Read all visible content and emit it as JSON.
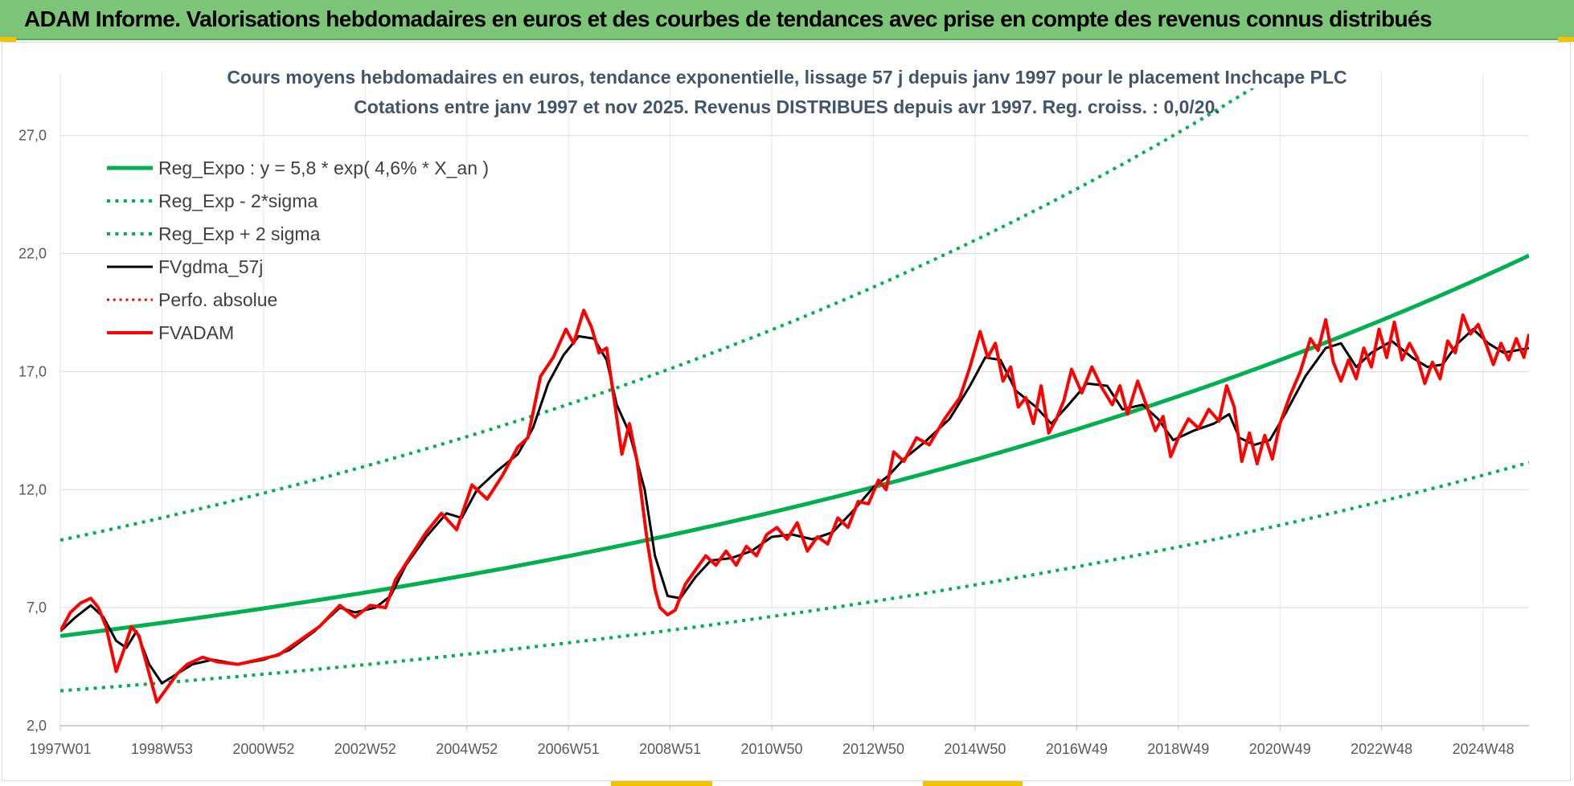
{
  "banner": {
    "title": "ADAM Informe. Valorisations hebdomadaires en euros et des courbes de tendances avec prise en compte des revenus connus distribués"
  },
  "chart_data": {
    "type": "line",
    "title": "Cours moyens hebdomadaires en euros, tendance exponentielle, lissage 57 j depuis janv 1997 pour le placement Inchcape PLC",
    "subtitle": "Cotations entre janv 1997 et nov 2025. Revenus DISTRIBUES depuis avr 1997. Reg. croiss. : 0,0/20.",
    "xlabel": "",
    "ylabel": "",
    "x_range": [
      1997.0,
      2025.9
    ],
    "ylim": [
      2.0,
      29.0
    ],
    "y_ticks": [
      2.0,
      7.0,
      12.0,
      17.0,
      22.0,
      27.0
    ],
    "y_tick_labels": [
      "2,0",
      "7,0",
      "12,0",
      "17,0",
      "22,0",
      "27,0"
    ],
    "x_ticks": [
      1997.0,
      1999.0,
      2001.0,
      2003.0,
      2005.0,
      2007.0,
      2009.0,
      2011.0,
      2013.0,
      2015.0,
      2017.0,
      2019.0,
      2021.0,
      2023.0,
      2025.0
    ],
    "x_tick_labels": [
      "1997W01",
      "1998W53",
      "2000W52",
      "2002W52",
      "2004W52",
      "2006W51",
      "2008W51",
      "2010W50",
      "2012W50",
      "2014W50",
      "2016W49",
      "2018W49",
      "2020W49",
      "2022W48",
      "2024W48"
    ],
    "grid": true,
    "legend_position": "top-left",
    "regression": {
      "a": 5.8,
      "rate_per_year": 0.046,
      "low_factor": 0.6,
      "high_factor": 1.7
    },
    "series": [
      {
        "name": "Reg_Expo : y = 5,8 * exp( 4,6% *  X_an )",
        "color": "#00b050",
        "style": "solid",
        "width": 5
      },
      {
        "name": "Reg_Exp - 2*sigma",
        "color": "#00b050",
        "style": "dotted",
        "width": 4
      },
      {
        "name": "Reg_Exp + 2 sigma",
        "color": "#00b050",
        "style": "dotted",
        "width": 4
      },
      {
        "name": "FVgdma_57j",
        "color": "#000000",
        "style": "solid",
        "width": 3,
        "points": [
          [
            1997.0,
            6.0
          ],
          [
            1997.3,
            6.6
          ],
          [
            1997.6,
            7.1
          ],
          [
            1997.85,
            6.6
          ],
          [
            1998.1,
            5.6
          ],
          [
            1998.3,
            5.3
          ],
          [
            1998.5,
            6.0
          ],
          [
            1998.75,
            4.6
          ],
          [
            1999.0,
            3.8
          ],
          [
            1999.3,
            4.2
          ],
          [
            1999.6,
            4.6
          ],
          [
            2000.0,
            4.8
          ],
          [
            2000.5,
            4.6
          ],
          [
            2001.0,
            4.8
          ],
          [
            2001.5,
            5.2
          ],
          [
            2002.0,
            6.0
          ],
          [
            2002.5,
            7.0
          ],
          [
            2002.8,
            6.8
          ],
          [
            2003.2,
            7.0
          ],
          [
            2003.5,
            7.5
          ],
          [
            2003.8,
            8.8
          ],
          [
            2004.2,
            10.0
          ],
          [
            2004.6,
            11.0
          ],
          [
            2004.9,
            10.8
          ],
          [
            2005.2,
            12.0
          ],
          [
            2005.6,
            12.8
          ],
          [
            2006.0,
            13.5
          ],
          [
            2006.3,
            14.6
          ],
          [
            2006.6,
            16.5
          ],
          [
            2006.9,
            17.7
          ],
          [
            2007.2,
            18.5
          ],
          [
            2007.5,
            18.4
          ],
          [
            2007.75,
            17.5
          ],
          [
            2007.95,
            15.6
          ],
          [
            2008.2,
            14.4
          ],
          [
            2008.5,
            12.0
          ],
          [
            2008.7,
            9.2
          ],
          [
            2008.95,
            7.5
          ],
          [
            2009.2,
            7.4
          ],
          [
            2009.5,
            8.3
          ],
          [
            2009.8,
            9.0
          ],
          [
            2010.2,
            9.1
          ],
          [
            2010.6,
            9.4
          ],
          [
            2011.0,
            10.0
          ],
          [
            2011.4,
            10.1
          ],
          [
            2011.8,
            9.9
          ],
          [
            2012.2,
            10.2
          ],
          [
            2012.6,
            11.1
          ],
          [
            2013.0,
            12.1
          ],
          [
            2013.3,
            12.6
          ],
          [
            2013.6,
            13.3
          ],
          [
            2014.0,
            14.0
          ],
          [
            2014.5,
            15.0
          ],
          [
            2014.9,
            16.4
          ],
          [
            2015.2,
            17.6
          ],
          [
            2015.5,
            17.5
          ],
          [
            2015.8,
            16.2
          ],
          [
            2016.2,
            15.5
          ],
          [
            2016.5,
            14.8
          ],
          [
            2016.8,
            15.5
          ],
          [
            2017.2,
            16.5
          ],
          [
            2017.6,
            16.4
          ],
          [
            2017.9,
            15.4
          ],
          [
            2018.3,
            15.6
          ],
          [
            2018.6,
            15.0
          ],
          [
            2018.9,
            14.1
          ],
          [
            2019.3,
            14.5
          ],
          [
            2019.7,
            14.8
          ],
          [
            2020.0,
            15.2
          ],
          [
            2020.2,
            14.2
          ],
          [
            2020.5,
            13.9
          ],
          [
            2020.8,
            14.1
          ],
          [
            2021.1,
            15.2
          ],
          [
            2021.5,
            16.8
          ],
          [
            2021.9,
            18.0
          ],
          [
            2022.2,
            18.2
          ],
          [
            2022.5,
            17.2
          ],
          [
            2022.8,
            17.8
          ],
          [
            2023.2,
            18.3
          ],
          [
            2023.6,
            17.6
          ],
          [
            2023.9,
            17.2
          ],
          [
            2024.2,
            17.3
          ],
          [
            2024.5,
            18.2
          ],
          [
            2024.8,
            18.8
          ],
          [
            2025.1,
            18.2
          ],
          [
            2025.4,
            17.8
          ],
          [
            2025.9,
            18.0
          ]
        ]
      },
      {
        "name": "Perfo. absolue",
        "color": "#ff0000",
        "style": "dotted",
        "width": 3
      },
      {
        "name": "FVADAM",
        "color": "#ff0000",
        "style": "solid",
        "width": 4,
        "points": [
          [
            1997.0,
            6.0
          ],
          [
            1997.2,
            6.8
          ],
          [
            1997.4,
            7.2
          ],
          [
            1997.6,
            7.4
          ],
          [
            1997.75,
            7.0
          ],
          [
            1997.9,
            6.2
          ],
          [
            1998.1,
            4.3
          ],
          [
            1998.25,
            5.2
          ],
          [
            1998.4,
            6.2
          ],
          [
            1998.55,
            5.8
          ],
          [
            1998.75,
            4.2
          ],
          [
            1998.9,
            3.0
          ],
          [
            1999.1,
            3.6
          ],
          [
            1999.3,
            4.2
          ],
          [
            1999.5,
            4.6
          ],
          [
            1999.8,
            4.9
          ],
          [
            2000.1,
            4.7
          ],
          [
            2000.5,
            4.6
          ],
          [
            2000.9,
            4.8
          ],
          [
            2001.3,
            5.0
          ],
          [
            2001.7,
            5.6
          ],
          [
            2002.1,
            6.2
          ],
          [
            2002.5,
            7.1
          ],
          [
            2002.8,
            6.6
          ],
          [
            2003.1,
            7.1
          ],
          [
            2003.4,
            7.0
          ],
          [
            2003.6,
            8.2
          ],
          [
            2003.9,
            9.2
          ],
          [
            2004.2,
            10.2
          ],
          [
            2004.5,
            11.0
          ],
          [
            2004.8,
            10.3
          ],
          [
            2005.1,
            12.2
          ],
          [
            2005.4,
            11.6
          ],
          [
            2005.7,
            12.6
          ],
          [
            2006.0,
            13.8
          ],
          [
            2006.2,
            14.2
          ],
          [
            2006.45,
            16.8
          ],
          [
            2006.7,
            17.6
          ],
          [
            2006.95,
            18.8
          ],
          [
            2007.1,
            18.2
          ],
          [
            2007.3,
            19.6
          ],
          [
            2007.45,
            18.9
          ],
          [
            2007.6,
            17.8
          ],
          [
            2007.75,
            18.0
          ],
          [
            2007.9,
            15.8
          ],
          [
            2008.05,
            13.5
          ],
          [
            2008.2,
            14.8
          ],
          [
            2008.35,
            13.2
          ],
          [
            2008.55,
            9.8
          ],
          [
            2008.7,
            7.8
          ],
          [
            2008.8,
            7.0
          ],
          [
            2008.95,
            6.7
          ],
          [
            2009.1,
            6.9
          ],
          [
            2009.3,
            8.0
          ],
          [
            2009.5,
            8.6
          ],
          [
            2009.7,
            9.2
          ],
          [
            2009.9,
            8.8
          ],
          [
            2010.1,
            9.4
          ],
          [
            2010.3,
            8.8
          ],
          [
            2010.5,
            9.6
          ],
          [
            2010.7,
            9.2
          ],
          [
            2010.9,
            10.1
          ],
          [
            2011.1,
            10.4
          ],
          [
            2011.3,
            9.9
          ],
          [
            2011.5,
            10.6
          ],
          [
            2011.7,
            9.4
          ],
          [
            2011.9,
            10.0
          ],
          [
            2012.1,
            9.7
          ],
          [
            2012.3,
            10.8
          ],
          [
            2012.5,
            10.4
          ],
          [
            2012.7,
            11.5
          ],
          [
            2012.9,
            11.4
          ],
          [
            2013.1,
            12.4
          ],
          [
            2013.25,
            12.0
          ],
          [
            2013.4,
            13.6
          ],
          [
            2013.6,
            13.2
          ],
          [
            2013.85,
            14.2
          ],
          [
            2014.1,
            13.9
          ],
          [
            2014.4,
            15.0
          ],
          [
            2014.7,
            15.9
          ],
          [
            2014.9,
            17.2
          ],
          [
            2015.1,
            18.7
          ],
          [
            2015.25,
            17.6
          ],
          [
            2015.4,
            18.2
          ],
          [
            2015.55,
            16.6
          ],
          [
            2015.7,
            17.2
          ],
          [
            2015.85,
            15.5
          ],
          [
            2016.0,
            15.9
          ],
          [
            2016.15,
            14.8
          ],
          [
            2016.3,
            16.4
          ],
          [
            2016.45,
            14.4
          ],
          [
            2016.6,
            15.0
          ],
          [
            2016.75,
            15.8
          ],
          [
            2016.9,
            17.1
          ],
          [
            2017.1,
            16.1
          ],
          [
            2017.3,
            17.2
          ],
          [
            2017.5,
            16.3
          ],
          [
            2017.7,
            15.6
          ],
          [
            2017.85,
            16.4
          ],
          [
            2018.0,
            15.2
          ],
          [
            2018.2,
            16.6
          ],
          [
            2018.4,
            15.4
          ],
          [
            2018.55,
            14.5
          ],
          [
            2018.7,
            15.1
          ],
          [
            2018.85,
            13.4
          ],
          [
            2019.0,
            14.2
          ],
          [
            2019.2,
            15.0
          ],
          [
            2019.4,
            14.6
          ],
          [
            2019.6,
            15.4
          ],
          [
            2019.8,
            14.9
          ],
          [
            2019.95,
            16.4
          ],
          [
            2020.1,
            15.5
          ],
          [
            2020.25,
            13.2
          ],
          [
            2020.4,
            14.4
          ],
          [
            2020.55,
            13.1
          ],
          [
            2020.7,
            14.3
          ],
          [
            2020.85,
            13.3
          ],
          [
            2021.0,
            14.8
          ],
          [
            2021.2,
            16.0
          ],
          [
            2021.4,
            17.0
          ],
          [
            2021.6,
            18.4
          ],
          [
            2021.75,
            17.9
          ],
          [
            2021.9,
            19.2
          ],
          [
            2022.05,
            17.4
          ],
          [
            2022.2,
            16.6
          ],
          [
            2022.35,
            17.5
          ],
          [
            2022.5,
            16.7
          ],
          [
            2022.65,
            18.0
          ],
          [
            2022.8,
            17.2
          ],
          [
            2022.95,
            18.8
          ],
          [
            2023.1,
            17.6
          ],
          [
            2023.25,
            19.1
          ],
          [
            2023.4,
            17.5
          ],
          [
            2023.55,
            18.2
          ],
          [
            2023.7,
            17.6
          ],
          [
            2023.85,
            16.5
          ],
          [
            2024.0,
            17.4
          ],
          [
            2024.15,
            16.7
          ],
          [
            2024.3,
            18.3
          ],
          [
            2024.45,
            17.8
          ],
          [
            2024.6,
            19.4
          ],
          [
            2024.75,
            18.6
          ],
          [
            2024.9,
            19.0
          ],
          [
            2025.05,
            18.2
          ],
          [
            2025.2,
            17.3
          ],
          [
            2025.35,
            18.2
          ],
          [
            2025.5,
            17.5
          ],
          [
            2025.65,
            18.4
          ],
          [
            2025.8,
            17.6
          ],
          [
            2025.9,
            18.6
          ]
        ]
      }
    ]
  }
}
